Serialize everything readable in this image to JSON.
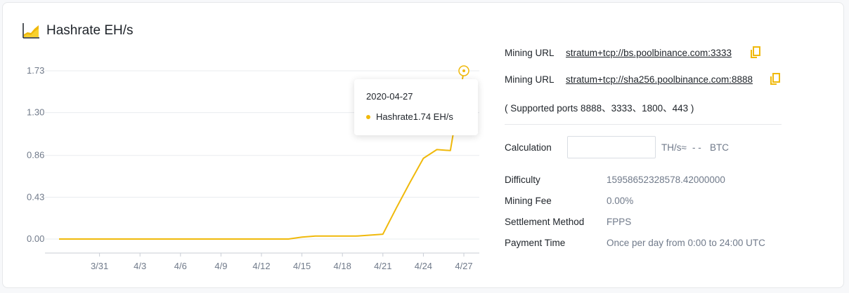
{
  "title": "Hashrate EH/s",
  "icons": {
    "header": "hashrate-chart-icon",
    "copy": "copy-icon"
  },
  "colors": {
    "accent": "#f0b90b",
    "text": "#1e2329",
    "muted": "#707a8a",
    "grid": "#eaecef"
  },
  "chart_data": {
    "type": "line",
    "title": "Hashrate EH/s",
    "xlabel": "",
    "ylabel": "",
    "ylim": [
      0,
      1.73
    ],
    "grid": true,
    "y_ticks": [
      "1.73",
      "1.30",
      "0.86",
      "0.43",
      "0.00"
    ],
    "x_ticks": [
      "3/31",
      "4/3",
      "4/6",
      "4/9",
      "4/12",
      "4/15",
      "4/18",
      "4/21",
      "4/24",
      "4/27"
    ],
    "series": [
      {
        "name": "Hashrate",
        "x": [
          "3/28",
          "3/29",
          "3/30",
          "3/31",
          "4/1",
          "4/2",
          "4/3",
          "4/4",
          "4/5",
          "4/6",
          "4/7",
          "4/8",
          "4/9",
          "4/10",
          "4/11",
          "4/12",
          "4/13",
          "4/14",
          "4/15",
          "4/16",
          "4/17",
          "4/18",
          "4/19",
          "4/20",
          "4/21",
          "4/22",
          "4/23",
          "4/24",
          "4/25",
          "4/26",
          "4/27"
        ],
        "values": [
          0,
          0,
          0,
          0,
          0,
          0,
          0,
          0,
          0,
          0,
          0,
          0,
          0,
          0,
          0,
          0,
          0,
          0,
          0.02,
          0.03,
          0.03,
          0.03,
          0.03,
          0.04,
          0.05,
          0.32,
          0.58,
          0.83,
          0.92,
          0.91,
          1.74
        ]
      }
    ],
    "tooltip": {
      "date": "2020-04-27",
      "series": "Hashrate",
      "value": "1.74 EH/s"
    }
  },
  "mining": {
    "url_label": "Mining URL",
    "urls": [
      "stratum+tcp://bs.poolbinance.com:3333",
      "stratum+tcp://sha256.poolbinance.com:8888"
    ],
    "ports_note": "( Supported ports 8888、3333、1800、443 )"
  },
  "calculation": {
    "label": "Calculation",
    "input_value": "",
    "unit_text": "TH/s≈",
    "result": "- -",
    "currency": "BTC"
  },
  "details": [
    {
      "label": "Difficulty",
      "value": "15958652328578.42000000"
    },
    {
      "label": "Mining Fee",
      "value": "0.00%"
    },
    {
      "label": "Settlement Method",
      "value": "FPPS"
    },
    {
      "label": "Payment Time",
      "value": "Once per day from 0:00 to 24:00 UTC"
    }
  ]
}
